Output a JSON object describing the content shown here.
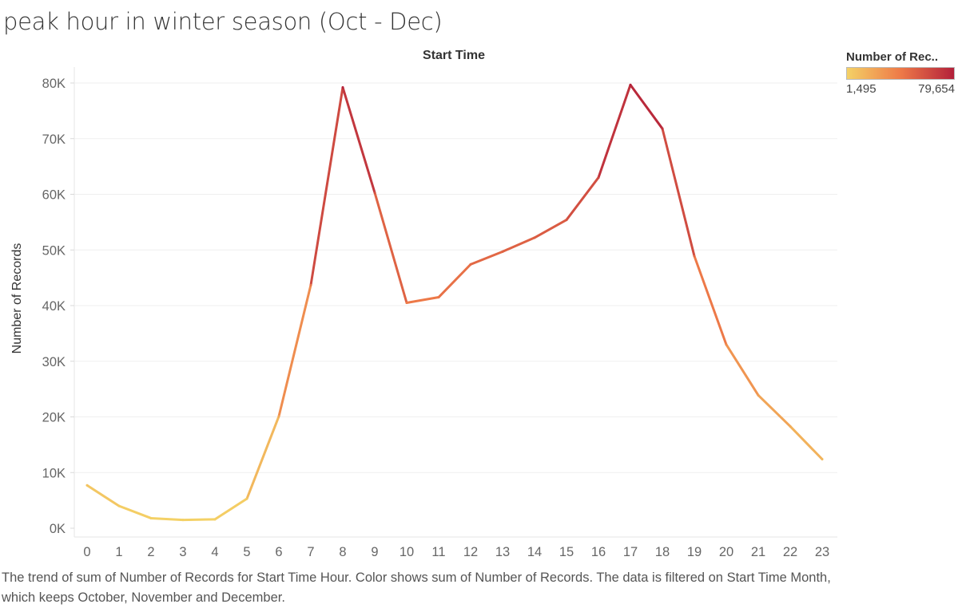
{
  "title": "peak hour in winter season (Oct - Dec)",
  "caption": "The trend of sum of Number of Records for Start Time Hour.  Color shows sum of Number of Records. The data is filtered on Start Time Month, which keeps October, November and December.",
  "legend": {
    "title": "Number of Rec..",
    "min_label": "1,495",
    "max_label": "79,654",
    "color_low": "#f4d166",
    "color_mid": "#ee7a48",
    "color_high": "#b3203a"
  },
  "chart_data": {
    "type": "line",
    "title": "Start Time",
    "xlabel": "Start Time",
    "ylabel": "Number of Records",
    "x": [
      0,
      1,
      2,
      3,
      4,
      5,
      6,
      7,
      8,
      9,
      10,
      11,
      12,
      13,
      14,
      15,
      16,
      17,
      18,
      19,
      20,
      21,
      22,
      23
    ],
    "x_tick_labels": [
      "0",
      "1",
      "2",
      "3",
      "4",
      "5",
      "6",
      "7",
      "8",
      "9",
      "10",
      "11",
      "12",
      "13",
      "14",
      "15",
      "16",
      "17",
      "18",
      "19",
      "20",
      "21",
      "22",
      "23"
    ],
    "values": [
      7700,
      4000,
      1800,
      1495,
      1600,
      5300,
      20100,
      43700,
      79200,
      60300,
      40500,
      41500,
      47400,
      49700,
      52200,
      55400,
      63000,
      79654,
      71800,
      48900,
      33000,
      23900,
      18300,
      12400
    ],
    "ylim": [
      -1500,
      85000
    ],
    "y_ticks": [
      0,
      10000,
      20000,
      30000,
      40000,
      50000,
      60000,
      70000,
      80000
    ],
    "y_tick_labels": [
      "0K",
      "10K",
      "20K",
      "30K",
      "40K",
      "50K",
      "60K",
      "70K",
      "80K"
    ],
    "grid": true
  }
}
